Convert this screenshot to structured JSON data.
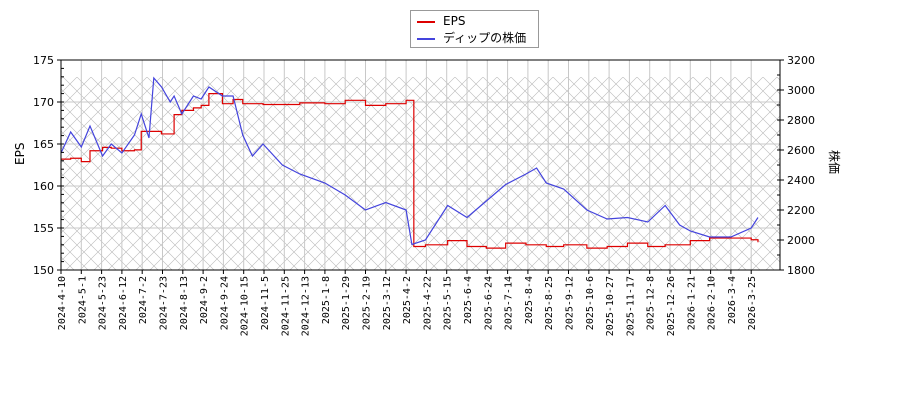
{
  "legend": {
    "items": [
      {
        "label": "EPS",
        "color": "#dd0000"
      },
      {
        "label": "ディップの株価",
        "color": "#4444dd"
      }
    ]
  },
  "axes": {
    "left_label": "EPS",
    "right_label": "株価",
    "left_ticks": [
      "150",
      "155",
      "160",
      "165",
      "170",
      "175"
    ],
    "right_ticks": [
      "1800",
      "2000",
      "2200",
      "2400",
      "2600",
      "2800",
      "3000",
      "3200"
    ]
  },
  "chart_data": {
    "type": "line",
    "title": "",
    "xlabel": "",
    "ylabel": "EPS",
    "y2label": "株価",
    "ylim": [
      150,
      175
    ],
    "y2lim": [
      1800,
      3200
    ],
    "grid": true,
    "legend_position": "top-center",
    "x_ticks": [
      "2024-4-10",
      "2024-5-1",
      "2024-5-23",
      "2024-6-12",
      "2024-7-2",
      "2024-7-23",
      "2024-8-13",
      "2024-9-2",
      "2024-9-24",
      "2024-10-15",
      "2024-11-5",
      "2024-11-25",
      "2024-12-13",
      "2025-1-8",
      "2025-1-29",
      "2025-2-19",
      "2025-3-12",
      "2025-4-2",
      "2025-4-22",
      "2025-5-15",
      "2025-6-4",
      "2025-6-24",
      "2025-7-14",
      "2025-8-4",
      "2025-8-25",
      "2025-9-12",
      "2025-10-6",
      "2025-10-27",
      "2025-11-17",
      "2025-12-8",
      "2025-12-26",
      "2026-1-21",
      "2026-2-10",
      "2026-3-4",
      "2026-3-25"
    ],
    "series": [
      {
        "name": "EPS",
        "axis": "left",
        "color": "#dd0000",
        "x": [
          "2024-4-10",
          "2024-4-20",
          "2024-5-1",
          "2024-5-10",
          "2024-5-23",
          "2024-6-1",
          "2024-6-12",
          "2024-6-25",
          "2024-7-2",
          "2024-7-15",
          "2024-7-23",
          "2024-8-5",
          "2024-8-13",
          "2024-8-25",
          "2024-9-2",
          "2024-9-10",
          "2024-9-24",
          "2024-10-5",
          "2024-10-15",
          "2024-11-5",
          "2024-11-25",
          "2024-12-13",
          "2025-1-8",
          "2025-1-29",
          "2025-2-19",
          "2025-3-12",
          "2025-4-2",
          "2025-4-8",
          "2025-4-10",
          "2025-4-22",
          "2025-5-15",
          "2025-6-4",
          "2025-6-24",
          "2025-7-14",
          "2025-8-4",
          "2025-8-25",
          "2025-9-12",
          "2025-10-6",
          "2025-10-27",
          "2025-11-17",
          "2025-12-8",
          "2025-12-26",
          "2026-1-21",
          "2026-2-10",
          "2026-3-4",
          "2026-3-25",
          "2026-4-1"
        ],
        "values": [
          163.2,
          163.3,
          162.9,
          164.2,
          164.6,
          164.5,
          164.2,
          164.3,
          166.5,
          166.5,
          166.2,
          168.5,
          169.0,
          169.3,
          169.6,
          171.0,
          169.8,
          170.3,
          169.8,
          169.7,
          169.7,
          169.9,
          169.8,
          170.2,
          169.6,
          169.8,
          170.2,
          170.2,
          152.8,
          153.0,
          153.5,
          152.8,
          152.6,
          153.2,
          153.0,
          152.8,
          153.0,
          152.6,
          152.8,
          153.2,
          152.8,
          153.0,
          153.5,
          153.8,
          153.8,
          153.6,
          153.3
        ]
      },
      {
        "name": "ディップの株価",
        "axis": "right",
        "color": "#4444dd",
        "x": [
          "2024-4-10",
          "2024-4-20",
          "2024-5-1",
          "2024-5-10",
          "2024-5-23",
          "2024-6-1",
          "2024-6-12",
          "2024-6-25",
          "2024-7-2",
          "2024-7-10",
          "2024-7-15",
          "2024-7-23",
          "2024-8-1",
          "2024-8-5",
          "2024-8-13",
          "2024-8-25",
          "2024-9-2",
          "2024-9-10",
          "2024-9-24",
          "2024-10-5",
          "2024-10-15",
          "2024-10-25",
          "2024-11-5",
          "2024-11-25",
          "2024-12-13",
          "2025-1-8",
          "2025-1-29",
          "2025-2-19",
          "2025-3-12",
          "2025-4-2",
          "2025-4-8",
          "2025-4-22",
          "2025-5-15",
          "2025-6-4",
          "2025-6-24",
          "2025-7-14",
          "2025-8-4",
          "2025-8-15",
          "2025-8-25",
          "2025-9-12",
          "2025-10-6",
          "2025-10-27",
          "2025-11-17",
          "2025-12-8",
          "2025-12-26",
          "2026-1-10",
          "2026-1-21",
          "2026-2-10",
          "2026-3-4",
          "2026-3-25",
          "2026-4-1"
        ],
        "values": [
          2580,
          2720,
          2620,
          2760,
          2560,
          2640,
          2580,
          2700,
          2840,
          2680,
          3080,
          3020,
          2920,
          2960,
          2840,
          2960,
          2940,
          3020,
          2960,
          2960,
          2700,
          2560,
          2640,
          2500,
          2440,
          2380,
          2300,
          2200,
          2250,
          2200,
          1970,
          2000,
          2230,
          2150,
          2260,
          2370,
          2440,
          2480,
          2380,
          2340,
          2200,
          2140,
          2150,
          2120,
          2230,
          2100,
          2060,
          2020,
          2020,
          2080,
          2150
        ]
      }
    ]
  }
}
